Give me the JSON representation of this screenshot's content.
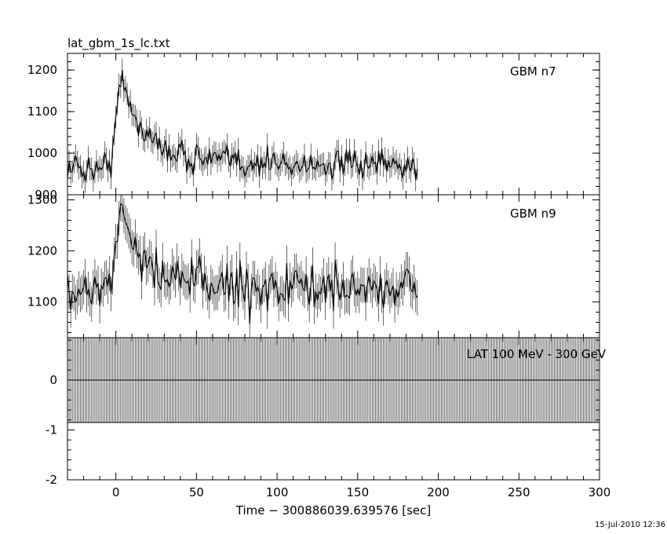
{
  "footer": {
    "datestamp": "15-Jul-2010 12:36"
  },
  "chart_data": [
    {
      "type": "line",
      "title": "lat_gbm_1s_lc.txt",
      "series_label": "GBM n7",
      "xlim": [
        -30,
        300
      ],
      "ylim": [
        900,
        1240
      ],
      "yticks": [
        900,
        1000,
        1100,
        1200
      ],
      "x_start": -30,
      "x_end": 187,
      "x_step": 1,
      "baseline": 965,
      "pulse": {
        "peak_x": 3,
        "amplitude": 190,
        "rise": 3,
        "decay": 12
      },
      "tail": {
        "amplitude": 40,
        "decay": 70
      },
      "noise": 30,
      "xlabel": "",
      "ylabel": ""
    },
    {
      "type": "line",
      "series_label": "GBM n9",
      "xlim": [
        -30,
        300
      ],
      "ylim": [
        1030,
        1310
      ],
      "yticks": [
        1100,
        1200,
        1300
      ],
      "x_start": -30,
      "x_end": 187,
      "x_step": 1,
      "baseline": 1125,
      "pulse": {
        "peak_x": 3,
        "amplitude": 140,
        "rise": 3,
        "decay": 12
      },
      "tail": {
        "amplitude": 20,
        "decay": 60
      },
      "noise": 38,
      "xlabel": "",
      "ylabel": ""
    },
    {
      "type": "line",
      "series_label": "LAT 100 MeV - 300 GeV",
      "xlim": [
        -30,
        300
      ],
      "ylim": [
        -2,
        0.85
      ],
      "yticks": [
        -2,
        -1,
        0
      ],
      "xticks": [
        0,
        50,
        100,
        150,
        200,
        250,
        300
      ],
      "counts": 0,
      "band": [
        -0.85,
        0.85
      ],
      "x_step": 1,
      "xlabel": "Time − 300886039.639576 [sec]",
      "ylabel": ""
    }
  ]
}
